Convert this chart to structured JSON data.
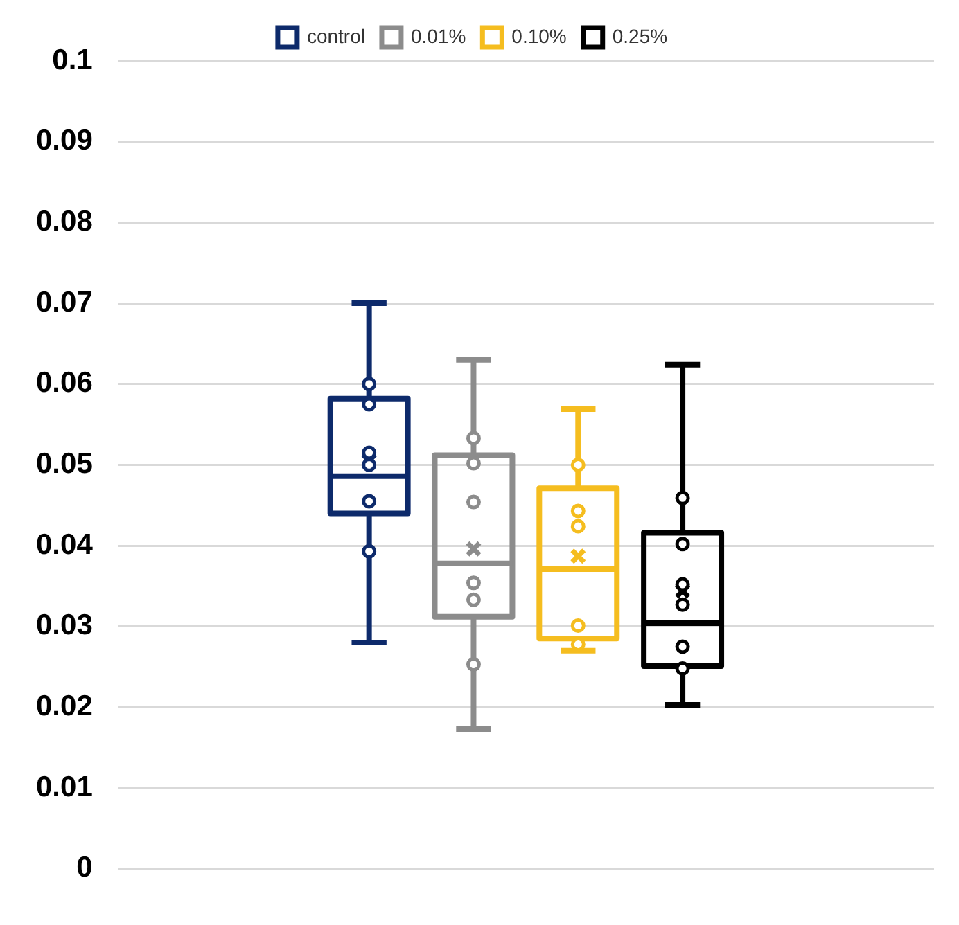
{
  "chart_data": {
    "type": "box",
    "categories": [
      null
    ],
    "ylim": [
      0,
      0.1
    ],
    "yticks": [
      0,
      0.01,
      0.02,
      0.03,
      0.04,
      0.05,
      0.06,
      0.07,
      0.08,
      0.09,
      0.1
    ],
    "grid": "y",
    "legend": "top",
    "tick_labels": "y",
    "marker": "circle",
    "series": [
      {
        "name": "control",
        "color": "#0d2a6b",
        "boxes": [
          {
            "low": 0.028,
            "q1": 0.044,
            "median": 0.0486,
            "q3": 0.0582,
            "high": 0.07,
            "mean": 0.0505,
            "outliers": [
              0.06,
              0.0575,
              0.0515,
              0.05,
              0.0455,
              0.0393
            ]
          }
        ]
      },
      {
        "name": "0.01%",
        "color": "#8c8c8c",
        "boxes": [
          {
            "low": 0.0173,
            "q1": 0.0312,
            "median": 0.0378,
            "q3": 0.0512,
            "high": 0.063,
            "mean": 0.0396,
            "outliers": [
              0.0533,
              0.0502,
              0.0454,
              0.0354,
              0.0333,
              0.0253
            ]
          }
        ]
      },
      {
        "name": "0.10%",
        "color": "#f5bd1f",
        "boxes": [
          {
            "low": 0.027,
            "q1": 0.0285,
            "median": 0.0371,
            "q3": 0.0471,
            "high": 0.0569,
            "mean": 0.0387,
            "outliers": [
              0.05,
              0.0443,
              0.0424,
              0.0301,
              0.0278
            ]
          }
        ]
      },
      {
        "name": "0.25%",
        "color": "#000000",
        "boxes": [
          {
            "low": 0.0203,
            "q1": 0.0251,
            "median": 0.0304,
            "q3": 0.0416,
            "high": 0.0624,
            "mean": 0.0344,
            "outliers": [
              0.0459,
              0.0402,
              0.0352,
              0.0327,
              0.0275,
              0.0248
            ]
          }
        ]
      }
    ]
  }
}
